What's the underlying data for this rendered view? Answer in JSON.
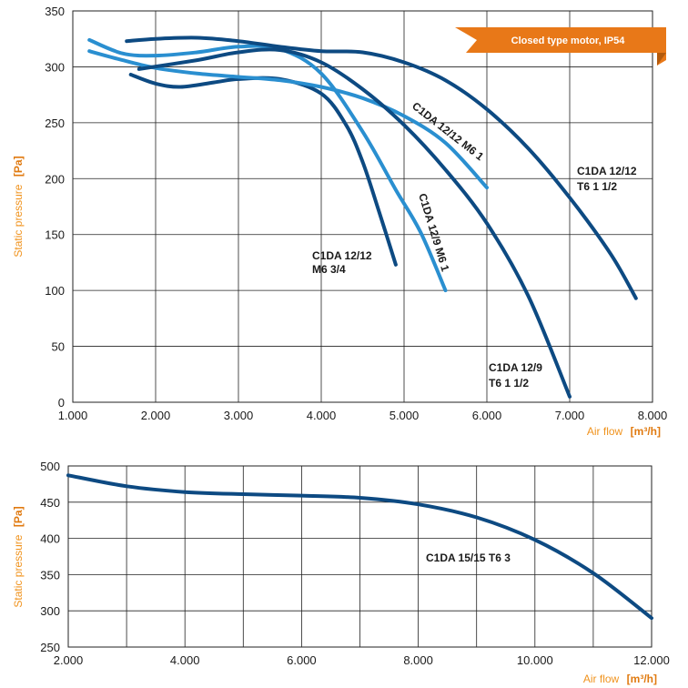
{
  "colors": {
    "dark": "#0d4a82",
    "light": "#2a8fd0",
    "accent": "#f0931e",
    "banner": "#e87818"
  },
  "chart_data": [
    {
      "type": "line",
      "xlabel": "Air flow",
      "xunit": "[m³/h]",
      "ylabel": "Static pressure",
      "yunit": "[Pa]",
      "xlim": [
        1000,
        8000
      ],
      "ylim": [
        0,
        350
      ],
      "xticks": [
        1000,
        2000,
        3000,
        4000,
        5000,
        6000,
        7000,
        8000
      ],
      "xtick_labels": [
        "1.000",
        "2.000",
        "3.000",
        "4.000",
        "5.000",
        "6.000",
        "7.000",
        "8.000"
      ],
      "yticks": [
        0,
        50,
        100,
        150,
        200,
        250,
        300,
        350
      ],
      "ytick_labels": [
        "0",
        "50",
        "100",
        "150",
        "200",
        "250",
        "300",
        "350"
      ],
      "grid": true,
      "banner": "Closed type motor, IP54",
      "series": [
        {
          "name": "C1DA 12/12 M6 3/4",
          "label_lines": [
            "C1DA 12/12",
            "M6 3/4"
          ],
          "color": "dark",
          "points": [
            [
              1700,
              293
            ],
            [
              2000,
              285
            ],
            [
              2300,
              282
            ],
            [
              2700,
              286
            ],
            [
              3000,
              289
            ],
            [
              3500,
              289
            ],
            [
              4000,
              276
            ],
            [
              4300,
              248
            ],
            [
              4500,
              215
            ],
            [
              4700,
              170
            ],
            [
              4900,
              123
            ]
          ]
        },
        {
          "name": "C1DA 12/9 M6 1",
          "label_lines": [
            "C1DA 12/9 M6 1"
          ],
          "color": "light",
          "points": [
            [
              1200,
              324
            ],
            [
              1600,
              312
            ],
            [
              2000,
              310
            ],
            [
              2500,
              313
            ],
            [
              3000,
              318
            ],
            [
              3500,
              316
            ],
            [
              4000,
              294
            ],
            [
              4500,
              242
            ],
            [
              4900,
              190
            ],
            [
              5200,
              152
            ],
            [
              5500,
              100
            ]
          ]
        },
        {
          "name": "C1DA 12/12 M6 1",
          "label_lines": [
            "C1DA 12/12 M6 1"
          ],
          "color": "light",
          "points": [
            [
              1200,
              314
            ],
            [
              1600,
              306
            ],
            [
              2000,
              299
            ],
            [
              2500,
              294
            ],
            [
              3000,
              291
            ],
            [
              3500,
              288
            ],
            [
              4000,
              282
            ],
            [
              4500,
              272
            ],
            [
              5000,
              256
            ],
            [
              5500,
              232
            ],
            [
              6000,
              192
            ]
          ]
        },
        {
          "name": "C1DA 12/9 T6 1 1/2",
          "label_lines": [
            "C1DA 12/9",
            "T6 1 1/2"
          ],
          "color": "dark",
          "points": [
            [
              1800,
              298
            ],
            [
              2500,
              306
            ],
            [
              3000,
              313
            ],
            [
              3500,
              315
            ],
            [
              4000,
              304
            ],
            [
              4500,
              280
            ],
            [
              5000,
              248
            ],
            [
              5500,
              208
            ],
            [
              6000,
              160
            ],
            [
              6500,
              95
            ],
            [
              7000,
              5
            ]
          ]
        },
        {
          "name": "C1DA 12/12 T6 1 1/2",
          "label_lines": [
            "C1DA 12/12",
            "T6 1 1/2"
          ],
          "color": "dark",
          "points": [
            [
              1650,
              323
            ],
            [
              2000,
              325
            ],
            [
              2500,
              326
            ],
            [
              3000,
              323
            ],
            [
              3500,
              318
            ],
            [
              4000,
              314
            ],
            [
              4500,
              313
            ],
            [
              5000,
              304
            ],
            [
              5500,
              288
            ],
            [
              6000,
              262
            ],
            [
              6500,
              227
            ],
            [
              7000,
              183
            ],
            [
              7500,
              132
            ],
            [
              7800,
              93
            ]
          ]
        }
      ]
    },
    {
      "type": "line",
      "xlabel": "Air flow",
      "xunit": "[m³/h]",
      "ylabel": "Static pressure",
      "yunit": "[Pa]",
      "xlim": [
        2000,
        12000
      ],
      "ylim": [
        250,
        500
      ],
      "xticks": [
        2000,
        4000,
        6000,
        8000,
        10000,
        12000
      ],
      "xtick_labels": [
        "2.000",
        "4.000",
        "6.000",
        "8.000",
        "10.000",
        "12.000"
      ],
      "yticks": [
        250,
        300,
        350,
        400,
        450,
        500
      ],
      "ytick_labels": [
        "250",
        "300",
        "350",
        "400",
        "450",
        "500"
      ],
      "grid": true,
      "series": [
        {
          "name": "C1DA 15/15 T6 3",
          "label_lines": [
            "C1DA 15/15 T6 3"
          ],
          "color": "dark",
          "points": [
            [
              2000,
              487
            ],
            [
              3000,
              472
            ],
            [
              4000,
              464
            ],
            [
              5000,
              461
            ],
            [
              6000,
              459
            ],
            [
              7000,
              456
            ],
            [
              8000,
              447
            ],
            [
              9000,
              429
            ],
            [
              10000,
              398
            ],
            [
              11000,
              352
            ],
            [
              12000,
              290
            ]
          ]
        }
      ]
    }
  ]
}
